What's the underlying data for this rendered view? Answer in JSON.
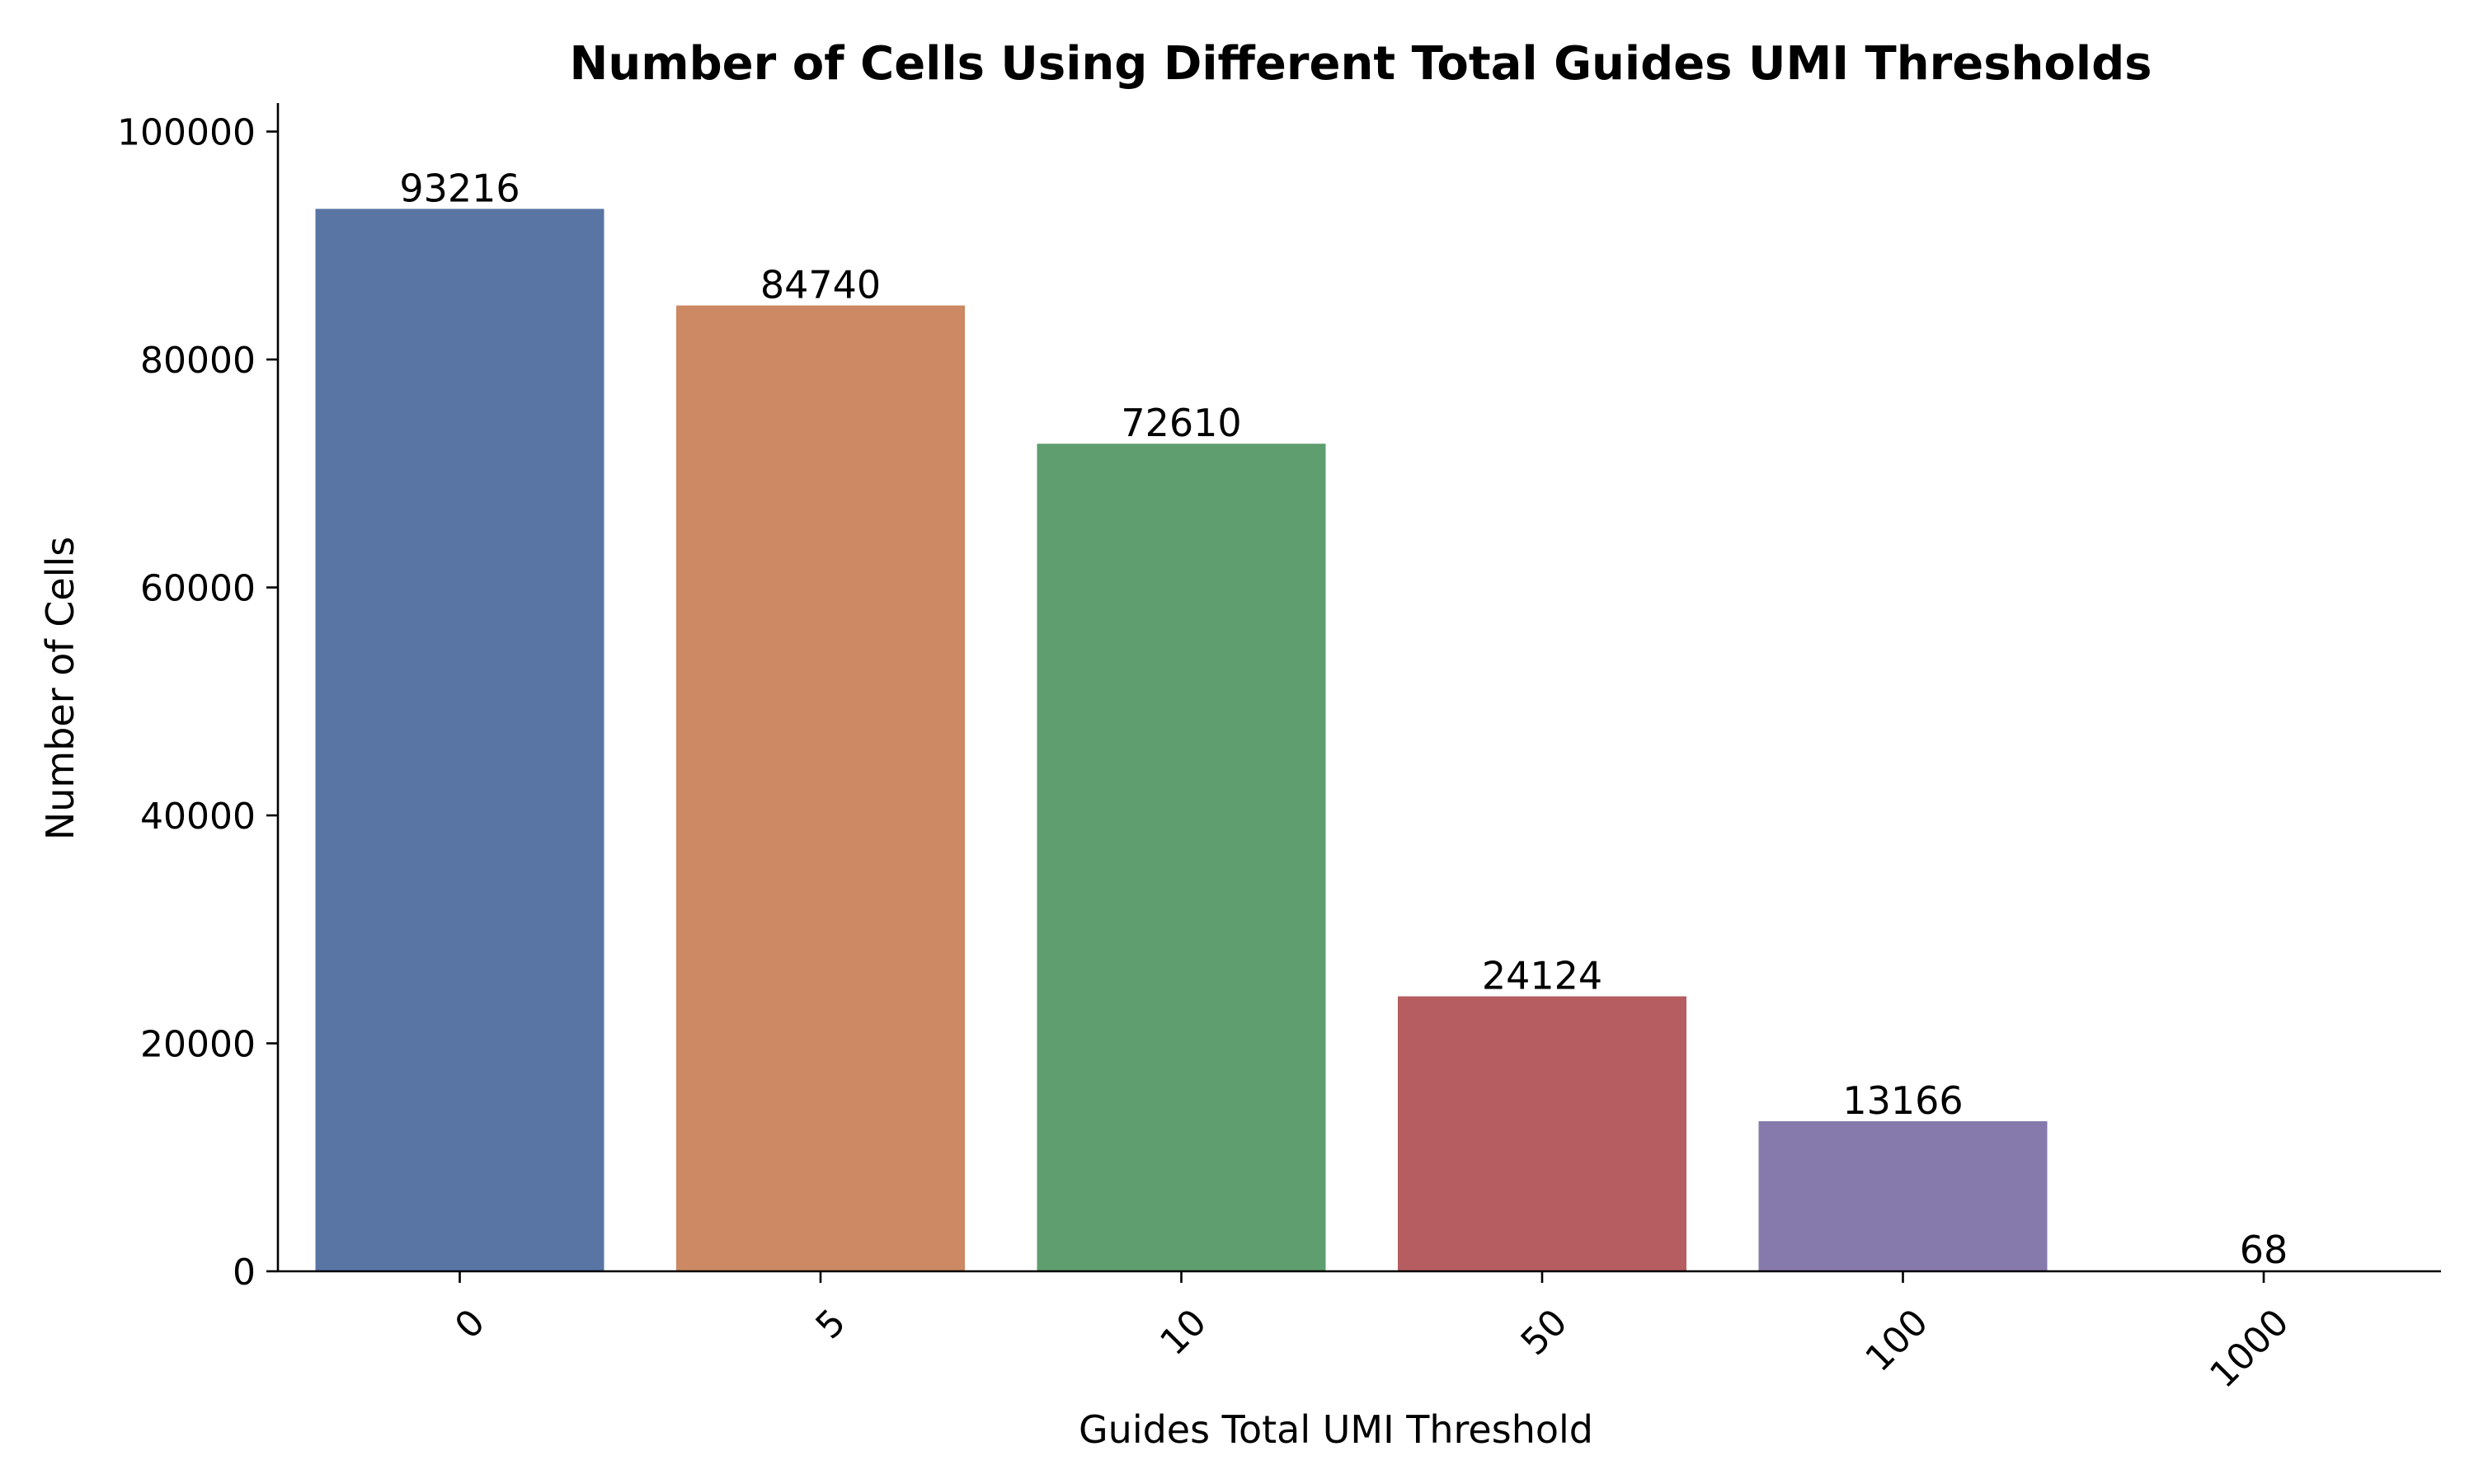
{
  "chart_data": {
    "type": "bar",
    "title": "Number of Cells Using Different Total Guides UMI Thresholds",
    "xlabel": "Guides Total UMI Threshold",
    "ylabel": "Number of Cells",
    "categories": [
      "0",
      "5",
      "10",
      "50",
      "100",
      "1000"
    ],
    "values": [
      93216,
      84740,
      72610,
      24124,
      13166,
      68
    ],
    "data_labels": [
      "93216",
      "84740",
      "72610",
      "24124",
      "13166",
      "68"
    ],
    "colors": [
      "#5975a4",
      "#cc8963",
      "#5f9e6e",
      "#b55d60",
      "#857aab",
      "#8d7866"
    ],
    "ylim": [
      0,
      102500
    ],
    "yticks": [
      0,
      20000,
      40000,
      60000,
      80000,
      100000
    ],
    "ytick_labels": [
      "0",
      "20000",
      "40000",
      "60000",
      "80000",
      "100000"
    ],
    "xtick_rotation_deg": 45,
    "grid": false,
    "legend": "none",
    "spines": "left-bottom"
  }
}
